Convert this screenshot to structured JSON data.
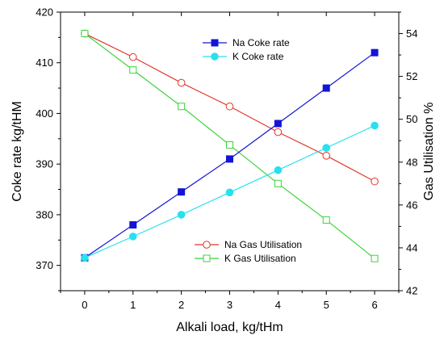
{
  "chart_data": {
    "type": "line",
    "xlabel": "Alkali load, kg/tHm",
    "ylabel_left": "Coke rate kg/tHM",
    "ylabel_right": "Gas Utilisation %",
    "x": [
      0,
      1,
      2,
      3,
      4,
      5,
      6
    ],
    "x_ticks": [
      "0",
      "1",
      "2",
      "3",
      "4",
      "5",
      "6"
    ],
    "xlim": [
      -0.5,
      6.5
    ],
    "ylim_left": [
      365,
      420
    ],
    "ylim_right": [
      42,
      55
    ],
    "y_ticks_left": [
      "370",
      "380",
      "390",
      "400",
      "410",
      "420"
    ],
    "y_ticks_right": [
      "42",
      "44",
      "46",
      "48",
      "50",
      "52",
      "54"
    ],
    "grid": false,
    "series": [
      {
        "name": "Na Coke rate",
        "axis": "left",
        "color": "#1414d4",
        "marker": "filled-square",
        "values": [
          371.5,
          378,
          384.5,
          391,
          398,
          405,
          412
        ]
      },
      {
        "name": "K Coke rate",
        "axis": "left",
        "color": "#28e0ee",
        "marker": "filled-circle",
        "values": [
          371.5,
          375.7,
          380,
          384.4,
          388.8,
          393.2,
          397.6
        ]
      },
      {
        "name": "Na Gas Utilisation",
        "axis": "right",
        "color": "#dd3a2c",
        "marker": "open-circle",
        "values": [
          54.0,
          52.9,
          51.7,
          50.6,
          49.4,
          48.3,
          47.1
        ]
      },
      {
        "name": "K Gas Utilisation",
        "axis": "right",
        "color": "#3cd43c",
        "marker": "open-square",
        "values": [
          54.0,
          52.3,
          50.6,
          48.8,
          47.0,
          45.3,
          43.5
        ]
      }
    ],
    "legends": [
      {
        "position": "top-center",
        "series": [
          "Na Coke rate",
          "K Coke rate"
        ]
      },
      {
        "position": "bottom-center",
        "series": [
          "Na Gas Utilisation",
          "K Gas Utilisation"
        ]
      }
    ]
  }
}
